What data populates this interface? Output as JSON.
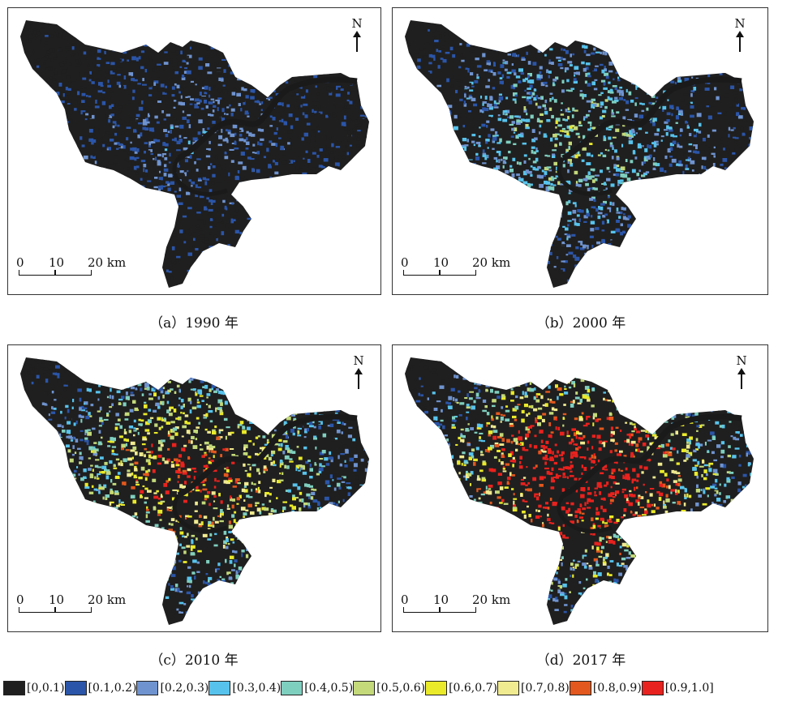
{
  "panels": [
    {
      "caption": "（a）1990 年",
      "urban_level": 0.15
    },
    {
      "caption": "（b）2000 年",
      "urban_level": 0.35
    },
    {
      "caption": "（c）2010 年",
      "urban_level": 0.65
    },
    {
      "caption": "（d）2017 年",
      "urban_level": 0.9
    }
  ],
  "north_label": "N",
  "scale_bar": {
    "ticks": [
      "0",
      "10",
      "20 km"
    ]
  },
  "legend": [
    {
      "label": "[0,0.1)",
      "color": "#1f1f1f"
    },
    {
      "label": "[0.1,0.2)",
      "color": "#2b55a8"
    },
    {
      "label": "[0.2,0.3)",
      "color": "#6f93cf"
    },
    {
      "label": "[0.3,0.4)",
      "color": "#57c3ec"
    },
    {
      "label": "[0.4,0.5)",
      "color": "#7fcfbf"
    },
    {
      "label": "[0.5,0.6)",
      "color": "#c3d97a"
    },
    {
      "label": "[0.6,0.7)",
      "color": "#eaea2a"
    },
    {
      "label": "[0.7,0.8)",
      "color": "#f0ea90"
    },
    {
      "label": "[0.8,0.9)",
      "color": "#e2581e"
    },
    {
      "label": "[0.9,1.0]",
      "color": "#e8221e"
    }
  ]
}
